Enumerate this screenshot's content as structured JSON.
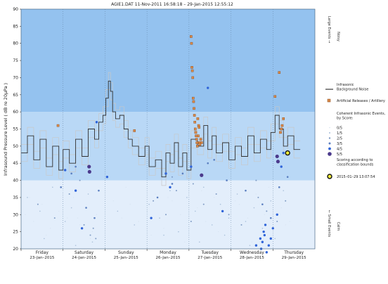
{
  "chart_data": {
    "type": "scatter",
    "title": "AGIE1.DAT   11-Nov-2011 16:58:18   –   29-Jan-2015 12:55:12",
    "ylabel": "Infrasound Pressure Level  ( dB re 20μPa )",
    "ylim": [
      20,
      90
    ],
    "yticks": [
      20,
      25,
      30,
      35,
      40,
      45,
      50,
      55,
      60,
      65,
      70,
      75,
      80,
      85,
      90
    ],
    "xlim": [
      0,
      7
    ],
    "days": [
      {
        "name": "Friday",
        "date": "23–Jan–2015"
      },
      {
        "name": "Saturday",
        "date": "24–Jan–2015"
      },
      {
        "name": "Sunday",
        "date": "25–Jan–2015"
      },
      {
        "name": "Monday",
        "date": "26–Jan–2015"
      },
      {
        "name": "Tuesday",
        "date": "27–Jan–2015"
      },
      {
        "name": "Wednesday",
        "date": "28–Jan–2015"
      },
      {
        "name": "Thursday",
        "date": "29–Jan–2015"
      }
    ],
    "bands": [
      {
        "from": 20,
        "to": 40,
        "color": "#e3eefb"
      },
      {
        "from": 40,
        "to": 60,
        "color": "#b9d8f6"
      },
      {
        "from": 60,
        "to": 90,
        "color": "#94c2ef"
      }
    ],
    "right_labels": {
      "large_events": "Large Events →",
      "noisy": "Noisy",
      "small_events": "← Small Events",
      "calm": "Calm"
    },
    "legend": {
      "background_noise": "Infrasonic Background Noise",
      "artificial": "Artificial Releases / Artillery",
      "coherent_title": "Coherent Infrasonic Events, by Score:",
      "scores": [
        "0/5",
        "1/5",
        "2/5",
        "3/5",
        "4/5",
        "5/5"
      ],
      "scoring_note": "Scoring according to classification bounds",
      "latest": "2015–01–29 13:07:54"
    },
    "colors": {
      "noise_line": "#303030",
      "noise_band": "#c8c8c8",
      "artificial": "#d98a4b",
      "artificial_edge": "#8a4a1a",
      "latest_fill": "#f5f03a",
      "score_colors": [
        "#d6e2f0",
        "#a9bfd9",
        "#7f9bc4",
        "#5b7fc0",
        "#2f64d9",
        "#4b3a8c"
      ]
    },
    "background_noise": {
      "x": [
        0.0,
        0.15,
        0.3,
        0.45,
        0.6,
        0.75,
        0.9,
        1.0,
        1.15,
        1.3,
        1.45,
        1.6,
        1.75,
        1.85,
        1.95,
        2.02,
        2.08,
        2.13,
        2.18,
        2.25,
        2.35,
        2.45,
        2.55,
        2.65,
        2.8,
        2.95,
        3.05,
        3.2,
        3.35,
        3.45,
        3.55,
        3.65,
        3.75,
        3.85,
        3.95,
        4.05,
        4.2,
        4.35,
        4.45,
        4.55,
        4.65,
        4.8,
        4.95,
        5.1,
        5.25,
        5.4,
        5.55,
        5.7,
        5.85,
        5.95,
        6.05,
        6.15,
        6.25,
        6.35,
        6.5
      ],
      "y": [
        48,
        53,
        46,
        52,
        44,
        50,
        43,
        49,
        45,
        52,
        47,
        55,
        52,
        57,
        59,
        64,
        69,
        66,
        60,
        58,
        59,
        55,
        52,
        50,
        47,
        50,
        44,
        46,
        41,
        48,
        45,
        51,
        44,
        48,
        43,
        52,
        50,
        56,
        49,
        53,
        48,
        51,
        46,
        50,
        47,
        53,
        48,
        52,
        49,
        54,
        59,
        55,
        50,
        53,
        49
      ]
    },
    "artificial_events": {
      "x": [
        0.88,
        2.7,
        4.05,
        4.06,
        4.07,
        4.08,
        4.09,
        4.1,
        4.11,
        4.12,
        4.13,
        4.14,
        4.15,
        4.16,
        4.17,
        4.18,
        4.19,
        4.2,
        4.21,
        4.22,
        4.23,
        4.24,
        4.25,
        4.26,
        4.28,
        4.3,
        6.05,
        6.15,
        6.18,
        6.2,
        6.22,
        6.25
      ],
      "y": [
        56,
        54.5,
        82,
        80,
        73,
        72,
        70,
        64,
        63,
        61,
        59,
        57,
        55,
        54,
        53,
        52,
        51,
        50,
        58,
        53,
        56,
        55.5,
        51,
        50.5,
        52,
        51,
        64.5,
        71.5,
        54,
        55,
        56,
        58
      ]
    },
    "coherent_events": [
      {
        "score": 0,
        "x": [
          0.1,
          0.3,
          0.5,
          0.7,
          0.9,
          1.1,
          1.25,
          1.4,
          1.55,
          1.7,
          1.8,
          2.2,
          2.4,
          2.6,
          2.8,
          3.0,
          3.2,
          3.4,
          3.6,
          3.8,
          4.0,
          4.2,
          4.4,
          4.6,
          4.8,
          5.0,
          5.2,
          5.4,
          5.6,
          5.8,
          6.0,
          6.2,
          6.4,
          0.2,
          0.6,
          1.0,
          1.35,
          1.65,
          2.5,
          3.1,
          3.5,
          3.9,
          4.3,
          4.7,
          5.1,
          5.5,
          5.9,
          6.3
        ],
        "y": [
          30,
          28,
          33,
          26,
          31,
          29,
          35,
          27,
          32,
          25,
          30,
          34,
          29,
          33,
          28,
          31,
          36,
          26,
          34,
          30,
          39,
          32,
          28,
          35,
          31,
          27,
          33,
          29,
          36,
          30,
          26,
          32,
          28,
          35,
          24,
          37,
          29,
          23,
          38,
          24,
          35,
          22,
          37,
          25,
          34,
          22,
          38,
          27
        ]
      },
      {
        "score": 1,
        "x": [
          0.15,
          0.45,
          0.75,
          1.05,
          1.2,
          1.45,
          1.6,
          1.75,
          2.3,
          2.7,
          3.05,
          3.3,
          3.55,
          3.75,
          3.95,
          4.15,
          4.35,
          4.55,
          4.75,
          4.95,
          5.15,
          5.35,
          5.55,
          5.75,
          5.95,
          6.1,
          6.25,
          0.55,
          1.3,
          1.7,
          3.4,
          4.25,
          4.85,
          5.45,
          6.05
        ],
        "y": [
          35,
          31,
          38,
          28,
          32,
          26,
          36,
          29,
          31,
          27,
          33,
          29,
          37,
          25,
          35,
          31,
          38,
          27,
          33,
          29,
          36,
          28,
          32,
          26,
          34,
          30,
          37,
          23,
          21,
          22,
          24,
          22,
          24,
          21,
          23
        ]
      },
      {
        "score": 2,
        "x": [
          0.4,
          0.8,
          1.15,
          1.5,
          1.65,
          1.72,
          1.78,
          3.15,
          3.45,
          3.7,
          4.05,
          4.35,
          4.65,
          4.95,
          5.25,
          5.65,
          5.85,
          6.1,
          6.3,
          1.4,
          3.6,
          4.1,
          5.6
        ],
        "y": [
          33,
          29,
          36,
          27,
          24,
          26,
          23,
          34,
          30,
          37,
          28,
          33,
          36,
          30,
          27,
          35,
          31,
          28,
          34,
          40,
          41,
          39,
          40
        ]
      },
      {
        "score": 3,
        "x": [
          0.95,
          1.2,
          1.55,
          1.75,
          1.85,
          3.25,
          3.6,
          3.85,
          4.45,
          4.9,
          5.35,
          5.75,
          5.95,
          6.15,
          6.35,
          1.3,
          4.6
        ],
        "y": [
          38,
          42,
          32,
          29,
          37,
          35,
          39,
          42,
          45,
          40,
          37,
          33,
          29,
          38,
          41,
          44,
          46
        ]
      },
      {
        "score": 4,
        "x": [
          1.05,
          1.3,
          1.8,
          3.1,
          3.55,
          4.05,
          4.45,
          4.8,
          5.6,
          5.7,
          5.72,
          5.75,
          5.78,
          5.8,
          5.82,
          5.85,
          5.9,
          5.95,
          6.0,
          6.1,
          6.2,
          1.45,
          3.45,
          6.25,
          2.05
        ],
        "y": [
          43,
          37,
          57,
          29,
          38,
          44,
          67,
          31,
          21,
          23,
          20,
          22,
          25,
          24,
          27,
          19,
          21,
          23,
          26,
          30,
          44,
          26,
          42,
          48,
          41
        ]
      },
      {
        "score": 5,
        "x": [
          1.62,
          1.63,
          4.3,
          6.1,
          6.12
        ],
        "y": [
          44,
          42.5,
          41.5,
          47,
          45.5
        ]
      }
    ],
    "latest_event": {
      "x": 6.35,
      "y": 48
    }
  }
}
